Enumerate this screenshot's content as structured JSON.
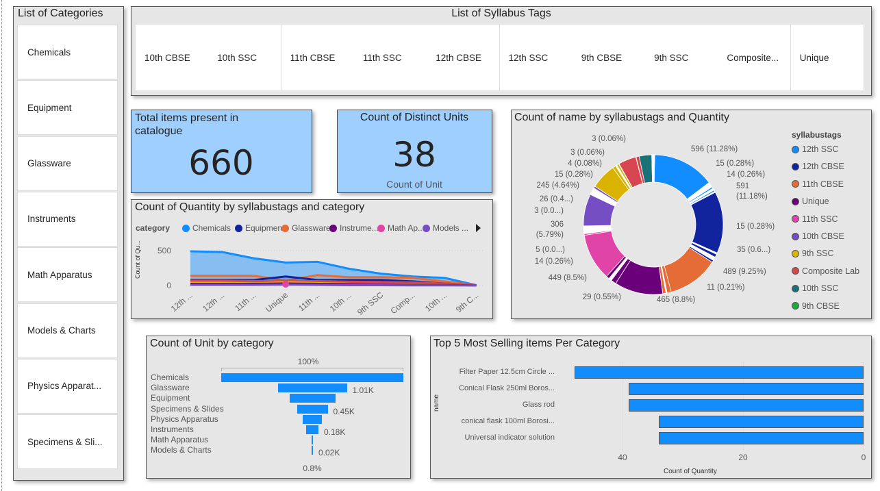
{
  "categories_slicer": {
    "title": "List of Categories",
    "items": [
      "Chemicals",
      "Equipment",
      "Glassware",
      "Instruments",
      "Math Apparatus",
      "Models & Charts",
      "Physics Apparat...",
      "Specimens & Sli..."
    ]
  },
  "tags_slicer": {
    "title": "List of Syllabus Tags",
    "items": [
      "10th CBSE",
      "10th SSC",
      "11th CBSE",
      "11th SSC",
      "12th CBSE",
      "12th SSC",
      "9th CBSE",
      "9th SSC",
      "Composite...",
      "Unique"
    ]
  },
  "kpi_total": {
    "title": "Total items present in catalogue",
    "value": "660"
  },
  "kpi_units": {
    "title": "Count of Distinct Units",
    "value": "38",
    "caption": "Count of Unit"
  },
  "colors": {
    "12th SSC": "#118DFF",
    "12th CBSE": "#12239E",
    "11th CBSE": "#E66C37",
    "Unique": "#6B007B",
    "11th SSC": "#E044A7",
    "10th CBSE": "#744EC2",
    "9th SSC": "#D9B300",
    "Composite Lab": "#D64550",
    "10th SSC": "#197278",
    "9th CBSE": "#1AAB40"
  },
  "chart_data": [
    {
      "type": "area",
      "title": "Count of Quantity by syllabustags and category",
      "legend_title": "category",
      "ylabel": "Count of Qu...",
      "yticks": [
        "500",
        "0"
      ],
      "ylim": [
        0,
        500
      ],
      "categories": [
        "12th ...",
        "12th ...",
        "11th ...",
        "Unique",
        "11th ...",
        "10th ...",
        "9th SSC",
        "Comp...",
        "10th ...",
        "9th C..."
      ],
      "legend": [
        {
          "name": "Chemicals",
          "color": "#118DFF"
        },
        {
          "name": "Equipment",
          "color": "#12239E"
        },
        {
          "name": "Glassware",
          "color": "#E66C37"
        },
        {
          "name": "Instrume...",
          "color": "#6B007B"
        },
        {
          "name": "Math Ap...",
          "color": "#E044A7"
        },
        {
          "name": "Models ...",
          "color": "#744EC2"
        }
      ],
      "series": [
        {
          "name": "Chemicals",
          "color": "#118DFF",
          "values": [
            490,
            480,
            390,
            330,
            340,
            240,
            170,
            130,
            110,
            5
          ]
        },
        {
          "name": "Glassware",
          "color": "#E66C37",
          "values": [
            140,
            140,
            140,
            70,
            150,
            120,
            120,
            110,
            60,
            5
          ]
        },
        {
          "name": "Equipment",
          "color": "#12239E",
          "values": [
            80,
            80,
            80,
            130,
            80,
            80,
            80,
            60,
            30,
            5
          ]
        },
        {
          "name": "Physics Apparatus",
          "color": "#D64550",
          "values": [
            70,
            70,
            65,
            60,
            65,
            55,
            50,
            45,
            30,
            5
          ]
        },
        {
          "name": "Specimens & Slides",
          "color": "#D9B300",
          "values": [
            40,
            40,
            30,
            50,
            35,
            25,
            20,
            15,
            10,
            3
          ]
        },
        {
          "name": "Instruments",
          "color": "#6B007B",
          "values": [
            25,
            25,
            25,
            30,
            25,
            20,
            15,
            10,
            8,
            2
          ]
        },
        {
          "name": "Models & Charts",
          "color": "#744EC2",
          "values": [
            10,
            10,
            10,
            15,
            10,
            5,
            5,
            3,
            2,
            1
          ]
        },
        {
          "name": "Math Apparatus",
          "color": "#E044A7",
          "values": [
            null,
            null,
            null,
            20,
            null,
            null,
            null,
            null,
            null,
            null
          ]
        }
      ]
    },
    {
      "type": "pie",
      "title": "Count of name by syllabustags and Quantity",
      "legend_title": "syllabustags",
      "legend": [
        "12th SSC",
        "12th CBSE",
        "11th CBSE",
        "Unique",
        "11th SSC",
        "10th CBSE",
        "9th SSC",
        "Composite Lab",
        "10th SSC",
        "9th CBSE"
      ],
      "slices": [
        {
          "tag": "12th SSC",
          "value": 596,
          "label": "596 (11.28%)"
        },
        {
          "tag": "12th SSC",
          "value": 50
        },
        {
          "tag": "12th SSC",
          "value": 15,
          "label": "15 (0.28%)"
        },
        {
          "tag": "12th SSC",
          "value": 20
        },
        {
          "tag": "12th SSC",
          "value": 14,
          "label": "14 (0.26%)"
        },
        {
          "tag": "12th SSC",
          "value": 10
        },
        {
          "tag": "12th CBSE",
          "value": 591,
          "label": "591 (11.18%)"
        },
        {
          "tag": "12th CBSE",
          "value": 15,
          "label": "15 (0.28%)"
        },
        {
          "tag": "12th CBSE",
          "value": 30
        },
        {
          "tag": "12th CBSE",
          "value": 35,
          "label": "35 (0.6...)"
        },
        {
          "tag": "12th CBSE",
          "value": 20
        },
        {
          "tag": "11th CBSE",
          "value": 489,
          "label": "489 (9.25%)"
        },
        {
          "tag": "11th CBSE",
          "value": 40
        },
        {
          "tag": "11th CBSE",
          "value": 11,
          "label": "11 (0.21%)"
        },
        {
          "tag": "11th CBSE",
          "value": 30
        },
        {
          "tag": "Unique",
          "value": 465,
          "label": "465 (8.8%)"
        },
        {
          "tag": "Unique",
          "value": 50
        },
        {
          "tag": "Unique",
          "value": 29,
          "label": "29 (0.55%)"
        },
        {
          "tag": "Unique",
          "value": 30
        },
        {
          "tag": "11th SSC",
          "value": 449,
          "label": "449 (8.5%)"
        },
        {
          "tag": "11th SSC",
          "value": 14,
          "label": "14 (0.26%)"
        },
        {
          "tag": "11th SSC",
          "value": 40
        },
        {
          "tag": "11th SSC",
          "value": 5,
          "label": "5 (0.0...)"
        },
        {
          "tag": "11th SSC",
          "value": 30
        },
        {
          "tag": "10th CBSE",
          "value": 306,
          "label": "306 (5.79%)"
        },
        {
          "tag": "10th CBSE",
          "value": 40
        },
        {
          "tag": "10th CBSE",
          "value": 3,
          "label": "3 (0.0...)"
        },
        {
          "tag": "10th CBSE",
          "value": 26,
          "label": "26 (0.4...)"
        },
        {
          "tag": "10th CBSE",
          "value": 20
        },
        {
          "tag": "9th SSC",
          "value": 245,
          "label": "245 (4.64%)"
        },
        {
          "tag": "9th SSC",
          "value": 30
        },
        {
          "tag": "9th SSC",
          "value": 15,
          "label": "15 (0.28%)"
        },
        {
          "tag": "9th SSC",
          "value": 20
        },
        {
          "tag": "Composite Lab",
          "value": 4,
          "label": "4 (0.08%)"
        },
        {
          "tag": "Composite Lab",
          "value": 170
        },
        {
          "tag": "Composite Lab",
          "value": 3,
          "label": "3 (0.06%)"
        },
        {
          "tag": "Composite Lab",
          "value": 30
        },
        {
          "tag": "10th SSC",
          "value": 120
        },
        {
          "tag": "10th SSC",
          "value": 3,
          "label": "3 (0.06%)"
        },
        {
          "tag": "10th SSC",
          "value": 20
        },
        {
          "tag": "9th CBSE",
          "value": 5
        }
      ]
    },
    {
      "type": "funnel",
      "title": "Count of Unit by category",
      "top_label": "100%",
      "bottom_label": "0.8%",
      "categories": [
        "Chemicals",
        "Glassware",
        "Equipment",
        "Specimens & Slides",
        "Physics Apparatus",
        "Instruments",
        "Math Apparatus",
        "Models & Charts"
      ],
      "values": [
        2660,
        1010,
        670,
        450,
        280,
        180,
        20,
        20
      ],
      "data_labels": [
        "",
        "1.01K",
        "",
        "0.45K",
        "",
        "0.18K",
        "",
        "0.02K"
      ],
      "color": "#118DFF"
    },
    {
      "type": "bar",
      "title": "Top 5 Most Selling items Per Category",
      "xlabel": "Count of Quantity",
      "ylabel": "name",
      "xlim": [
        0,
        50
      ],
      "x_reversed": true,
      "xticks": [
        "40",
        "20",
        "0"
      ],
      "categories": [
        "Filter Paper 12.5cm Circle ...",
        "Conical Flask 250ml Boros...",
        "Glass rod",
        "conical flask 100ml Borosi...",
        "Universal indicator solution"
      ],
      "values": [
        48,
        39,
        39,
        34,
        34
      ],
      "color": "#118DFF"
    }
  ]
}
